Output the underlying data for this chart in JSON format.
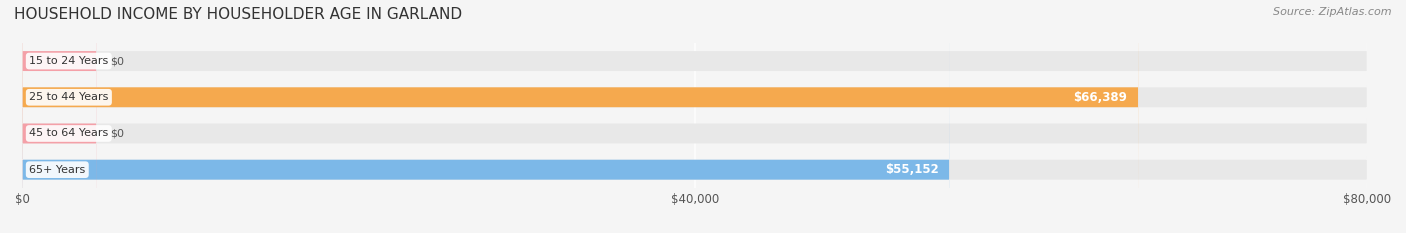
{
  "title": "HOUSEHOLD INCOME BY HOUSEHOLDER AGE IN GARLAND",
  "source": "Source: ZipAtlas.com",
  "categories": [
    "15 to 24 Years",
    "25 to 44 Years",
    "45 to 64 Years",
    "65+ Years"
  ],
  "values": [
    0,
    66389,
    0,
    55152
  ],
  "bar_colors": [
    "#f4a0a8",
    "#f5a94e",
    "#f4a0a8",
    "#7cb8e8"
  ],
  "label_colors": [
    "#888888",
    "#ffffff",
    "#888888",
    "#ffffff"
  ],
  "xlim": [
    0,
    80000
  ],
  "xticks": [
    0,
    40000,
    80000
  ],
  "xticklabels": [
    "$0",
    "$40,000",
    "$80,000"
  ],
  "background_color": "#f5f5f5",
  "bar_bg_color": "#e8e8e8",
  "value_labels": [
    "$0",
    "$66,389",
    "$0",
    "$55,152"
  ],
  "title_fontsize": 11,
  "source_fontsize": 8
}
